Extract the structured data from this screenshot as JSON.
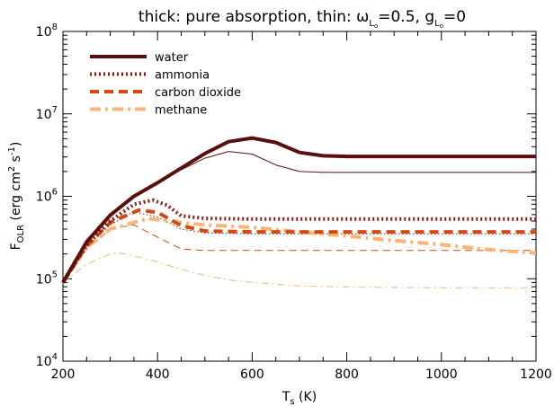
{
  "chart_data": {
    "type": "line",
    "title": {
      "main": "thick: pure absorption, thin: ω",
      "omega_sub": "L",
      "omega_subsub": "o",
      "omega_value": "=0.5, g",
      "g_sub": "L",
      "g_subsub": "o",
      "g_value": "=0"
    },
    "xlabel": {
      "main": "T",
      "sub": "s",
      "unit": " (K)"
    },
    "ylabel": {
      "main": "F",
      "sub": "OLR",
      "unit": " (erg cm",
      "sup2": "2",
      "mid": " s",
      "sup3": "-1",
      "end": ")"
    },
    "x_ticks": [
      "200",
      "400",
      "600",
      "800",
      "1000",
      "1200"
    ],
    "y_ticks": [
      {
        "base": "10",
        "exp": "4"
      },
      {
        "base": "10",
        "exp": "5"
      },
      {
        "base": "10",
        "exp": "6"
      },
      {
        "base": "10",
        "exp": "7"
      },
      {
        "base": "10",
        "exp": "8"
      }
    ],
    "xlim": [
      200,
      1200
    ],
    "ylim": [
      10000,
      100000000
    ],
    "y_scale": "log",
    "grid": false,
    "legend_position": "top-left",
    "series": [
      {
        "name": "water",
        "color": "#5a0f0f",
        "dash": "solid",
        "thick_width": 4,
        "thick": [
          [
            200,
            90000
          ],
          [
            250,
            280000
          ],
          [
            300,
            590000
          ],
          [
            350,
            1000000
          ],
          [
            400,
            1460000
          ],
          [
            450,
            2200000
          ],
          [
            500,
            3300000
          ],
          [
            550,
            4600000
          ],
          [
            600,
            5100000
          ],
          [
            650,
            4500000
          ],
          [
            700,
            3400000
          ],
          [
            750,
            3100000
          ],
          [
            800,
            3050000
          ],
          [
            900,
            3050000
          ],
          [
            1000,
            3050000
          ],
          [
            1100,
            3050000
          ],
          [
            1200,
            3050000
          ]
        ],
        "thin": [
          [
            200,
            90000
          ],
          [
            250,
            280000
          ],
          [
            300,
            590000
          ],
          [
            350,
            1000000
          ],
          [
            400,
            1460000
          ],
          [
            450,
            2100000
          ],
          [
            500,
            2900000
          ],
          [
            550,
            3500000
          ],
          [
            600,
            3250000
          ],
          [
            650,
            2400000
          ],
          [
            700,
            2000000
          ],
          [
            750,
            1950000
          ],
          [
            800,
            1950000
          ],
          [
            1000,
            1950000
          ],
          [
            1200,
            1950000
          ]
        ]
      },
      {
        "name": "ammonia",
        "color": "#8b1a1a",
        "dash": "dot",
        "thick_width": 4,
        "thick": [
          [
            200,
            90000
          ],
          [
            250,
            260000
          ],
          [
            300,
            500000
          ],
          [
            350,
            800000
          ],
          [
            390,
            900000
          ],
          [
            420,
            780000
          ],
          [
            450,
            580000
          ],
          [
            500,
            540000
          ],
          [
            600,
            530000
          ],
          [
            800,
            530000
          ],
          [
            1000,
            530000
          ],
          [
            1200,
            530000
          ]
        ],
        "thin": [
          [
            200,
            90000
          ],
          [
            250,
            250000
          ],
          [
            300,
            450000
          ],
          [
            350,
            650000
          ],
          [
            400,
            560000
          ],
          [
            450,
            400000
          ],
          [
            500,
            360000
          ],
          [
            600,
            350000
          ],
          [
            800,
            350000
          ],
          [
            1000,
            350000
          ],
          [
            1200,
            350000
          ]
        ]
      },
      {
        "name": "carbon dioxide",
        "color": "#d24a0f",
        "dash": "dash",
        "thick_width": 4,
        "thick": [
          [
            200,
            90000
          ],
          [
            250,
            250000
          ],
          [
            300,
            480000
          ],
          [
            360,
            680000
          ],
          [
            400,
            640000
          ],
          [
            450,
            440000
          ],
          [
            500,
            380000
          ],
          [
            600,
            370000
          ],
          [
            800,
            370000
          ],
          [
            1000,
            370000
          ],
          [
            1200,
            370000
          ]
        ],
        "thin": [
          [
            200,
            90000
          ],
          [
            250,
            230000
          ],
          [
            300,
            400000
          ],
          [
            350,
            450000
          ],
          [
            400,
            320000
          ],
          [
            450,
            230000
          ],
          [
            500,
            220000
          ],
          [
            600,
            220000
          ],
          [
            800,
            220000
          ],
          [
            1000,
            220000
          ],
          [
            1200,
            220000
          ]
        ]
      },
      {
        "name": "methane",
        "color": "#f9b476",
        "dash": "dashdot",
        "thick_width": 4,
        "thick": [
          [
            200,
            90000
          ],
          [
            250,
            240000
          ],
          [
            300,
            400000
          ],
          [
            380,
            540000
          ],
          [
            450,
            480000
          ],
          [
            500,
            450000
          ],
          [
            600,
            420000
          ],
          [
            700,
            370000
          ],
          [
            800,
            330000
          ],
          [
            900,
            290000
          ],
          [
            1000,
            260000
          ],
          [
            1100,
            225000
          ],
          [
            1200,
            205000
          ]
        ],
        "thin": [
          [
            200,
            90000
          ],
          [
            250,
            150000
          ],
          [
            300,
            200000
          ],
          [
            320,
            205000
          ],
          [
            350,
            190000
          ],
          [
            400,
            160000
          ],
          [
            450,
            130000
          ],
          [
            500,
            110000
          ],
          [
            550,
            97000
          ],
          [
            600,
            90000
          ],
          [
            700,
            82000
          ],
          [
            800,
            79000
          ],
          [
            1000,
            78000
          ],
          [
            1200,
            78000
          ]
        ]
      }
    ]
  }
}
